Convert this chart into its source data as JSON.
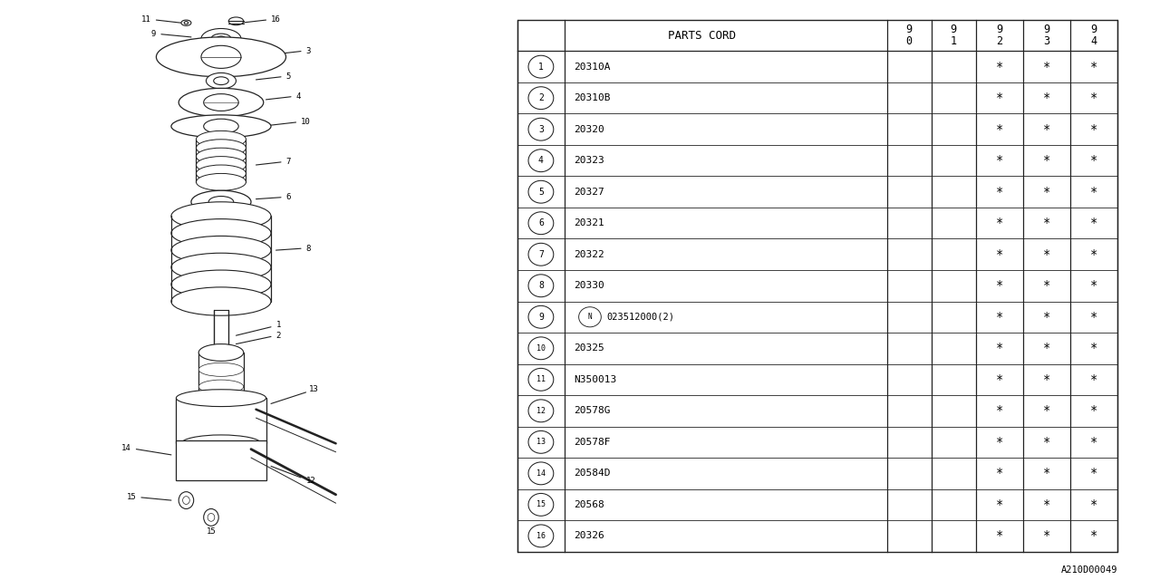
{
  "bg_color": "#ffffff",
  "line_color": "#222222",
  "text_color": "#000000",
  "rows": [
    [
      "1",
      "20310A",
      false,
      false,
      true,
      true,
      true
    ],
    [
      "2",
      "20310B",
      false,
      false,
      true,
      true,
      true
    ],
    [
      "3",
      "20320",
      false,
      false,
      true,
      true,
      true
    ],
    [
      "4",
      "20323",
      false,
      false,
      true,
      true,
      true
    ],
    [
      "5",
      "20327",
      false,
      false,
      true,
      true,
      true
    ],
    [
      "6",
      "20321",
      false,
      false,
      true,
      true,
      true
    ],
    [
      "7",
      "20322",
      false,
      false,
      true,
      true,
      true
    ],
    [
      "8",
      "20330",
      false,
      false,
      true,
      true,
      true
    ],
    [
      "9",
      "023512000(2)",
      false,
      false,
      true,
      true,
      true
    ],
    [
      "10",
      "20325",
      false,
      false,
      true,
      true,
      true
    ],
    [
      "11",
      "N350013",
      false,
      false,
      true,
      true,
      true
    ],
    [
      "12",
      "20578G",
      false,
      false,
      true,
      true,
      true
    ],
    [
      "13",
      "20578F",
      false,
      false,
      true,
      true,
      true
    ],
    [
      "14",
      "20584D",
      false,
      false,
      true,
      true,
      true
    ],
    [
      "15",
      "20568",
      false,
      false,
      true,
      true,
      true
    ],
    [
      "16",
      "20326",
      false,
      false,
      true,
      true,
      true
    ]
  ],
  "footer_code": "A210D00049",
  "year_headers": [
    [
      "9",
      "0"
    ],
    [
      "9",
      "1"
    ],
    [
      "9",
      "2"
    ],
    [
      "9",
      "3"
    ],
    [
      "9",
      "4"
    ]
  ]
}
